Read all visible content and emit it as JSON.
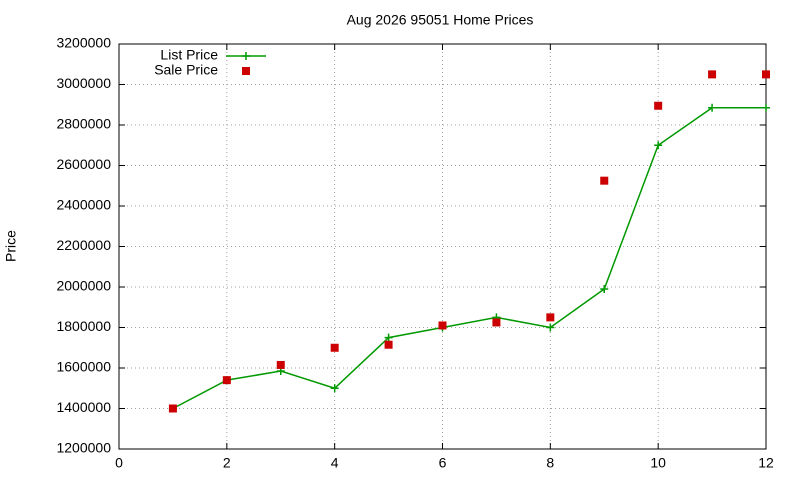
{
  "chart_data": {
    "type": "line",
    "title": "Aug 2026 95051 Home Prices",
    "ylabel": "Price",
    "x": [
      1,
      2,
      3,
      4,
      5,
      6,
      7,
      8,
      9,
      10,
      11,
      12
    ],
    "series": [
      {
        "name": "List Price",
        "color": "#009900",
        "style": "linespoints",
        "values": [
          1400000,
          1540000,
          1585000,
          1500000,
          1750000,
          1800000,
          1850000,
          1800000,
          1990000,
          2700000,
          2885000,
          2885000
        ]
      },
      {
        "name": "Sale Price",
        "color": "#cc0000",
        "style": "points",
        "values": [
          1400000,
          1540000,
          1615000,
          1700000,
          1715000,
          1810000,
          1825000,
          1850000,
          2525000,
          2895000,
          3050000,
          3050000
        ]
      }
    ],
    "xlim": [
      0,
      12
    ],
    "xticks": [
      0,
      2,
      4,
      6,
      8,
      10,
      12
    ],
    "ylim": [
      1200000,
      3200000
    ],
    "yticks": [
      1200000,
      1400000,
      1600000,
      1800000,
      2000000,
      2200000,
      2400000,
      2600000,
      2800000,
      3000000,
      3200000
    ],
    "grid": true,
    "legend": "top-left"
  }
}
